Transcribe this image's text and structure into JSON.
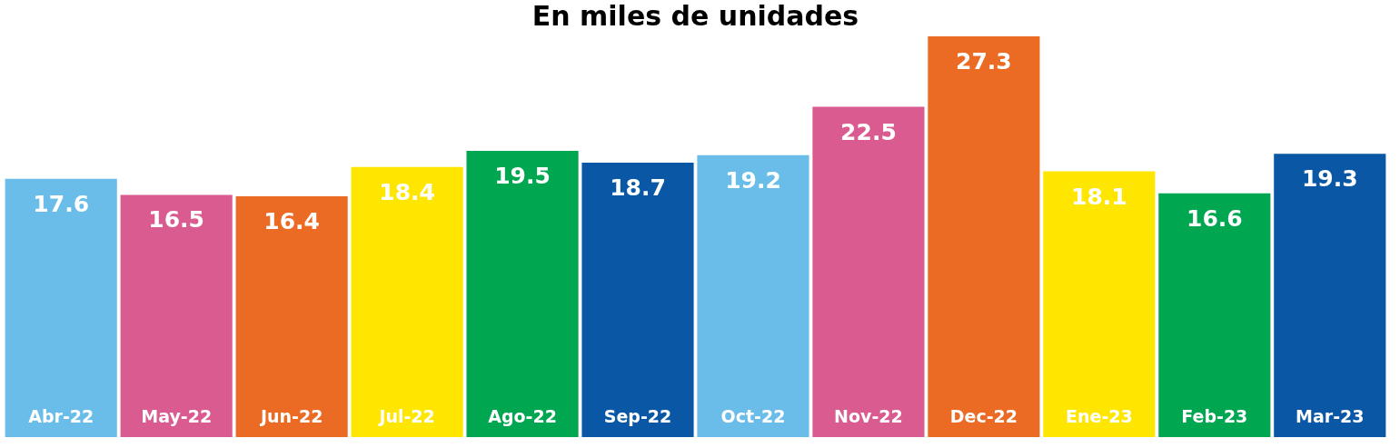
{
  "chart_data": {
    "type": "bar",
    "title": "En miles de unidades",
    "categories": [
      "Abr-22",
      "May-22",
      "Jun-22",
      "Jul-22",
      "Ago-22",
      "Sep-22",
      "Oct-22",
      "Nov-22",
      "Dec-22",
      "Ene-23",
      "Feb-23",
      "Mar-23"
    ],
    "values": [
      17.6,
      16.5,
      16.4,
      18.4,
      19.5,
      18.7,
      19.2,
      22.5,
      27.3,
      18.1,
      16.6,
      19.3
    ],
    "colors": [
      "#6bbde9",
      "#d95b8f",
      "#ec6b24",
      "#ffe600",
      "#00a650",
      "#0a58a5",
      "#6bbde9",
      "#d95b8f",
      "#ec6b24",
      "#ffe600",
      "#00a650",
      "#0a58a5"
    ],
    "data_labels": true,
    "grid": false
  }
}
